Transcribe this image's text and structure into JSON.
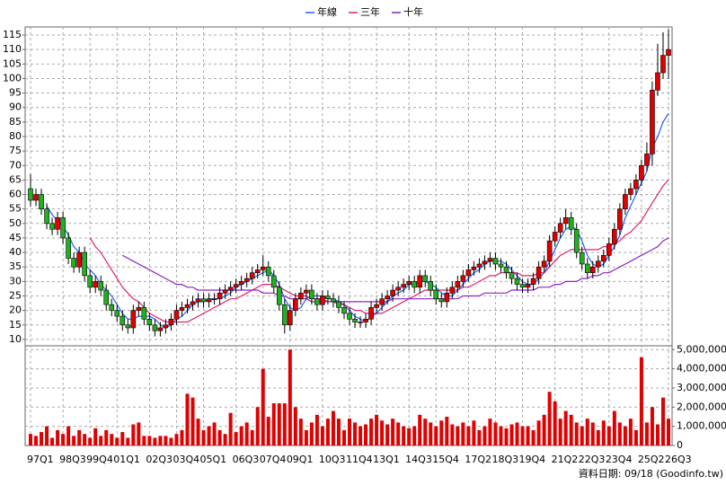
{
  "chart_data": {
    "type": "candlestick",
    "legend": "top",
    "grid": true,
    "up_color": "#e00000",
    "down_color": "#20b020",
    "categories": [
      "97Q1",
      null,
      null,
      null,
      null,
      null,
      "98Q3",
      null,
      null,
      null,
      null,
      "99Q4",
      null,
      null,
      null,
      null,
      "01Q1",
      null,
      null,
      null,
      null,
      null,
      "02Q3",
      null,
      null,
      null,
      null,
      "03Q4",
      null,
      null,
      null,
      null,
      "05Q1",
      null,
      null,
      null,
      null,
      null,
      "06Q3",
      null,
      null,
      null,
      null,
      "07Q4",
      null,
      null,
      null,
      null,
      "09Q1",
      null,
      null,
      null,
      null,
      null,
      "10Q3",
      null,
      null,
      null,
      null,
      "11Q4",
      null,
      null,
      null,
      null,
      "13Q1",
      null,
      null,
      null,
      null,
      null,
      "14Q3",
      null,
      null,
      null,
      null,
      "15Q4",
      null,
      null,
      null,
      null,
      null,
      "17Q2",
      null,
      null,
      null,
      null,
      "18Q3",
      null,
      null,
      null,
      null,
      "19Q4",
      null,
      null,
      null,
      null,
      null,
      "21Q2",
      null,
      null,
      null,
      null,
      "22Q3",
      null,
      null,
      null,
      null,
      "23Q4",
      null,
      null,
      null,
      null,
      null,
      "25Q2",
      null,
      null,
      null,
      null,
      "26Q3"
    ],
    "ohlc": [
      [
        62,
        67,
        56,
        58
      ],
      [
        58,
        62,
        56,
        60
      ],
      [
        60,
        62,
        53,
        55
      ],
      [
        55,
        57,
        48,
        50
      ],
      [
        50,
        52,
        46,
        48
      ],
      [
        48,
        54,
        46,
        52
      ],
      [
        52,
        54,
        43,
        45
      ],
      [
        45,
        47,
        36,
        38
      ],
      [
        38,
        40,
        33,
        35
      ],
      [
        35,
        42,
        33,
        40
      ],
      [
        40,
        42,
        30,
        32
      ],
      [
        32,
        34,
        26,
        28
      ],
      [
        28,
        32,
        26,
        30
      ],
      [
        30,
        32,
        25,
        27
      ],
      [
        27,
        29,
        20,
        22
      ],
      [
        22,
        24,
        18,
        20
      ],
      [
        20,
        22,
        16,
        18
      ],
      [
        18,
        20,
        13,
        15
      ],
      [
        15,
        17,
        12,
        14
      ],
      [
        14,
        22,
        12,
        20
      ],
      [
        20,
        23,
        18,
        21
      ],
      [
        21,
        23,
        15,
        17
      ],
      [
        17,
        19,
        13,
        15
      ],
      [
        15,
        17,
        11,
        13
      ],
      [
        13,
        16,
        11,
        14
      ],
      [
        14,
        17,
        12,
        15
      ],
      [
        15,
        19,
        13,
        17
      ],
      [
        17,
        22,
        15,
        20
      ],
      [
        20,
        23,
        18,
        21
      ],
      [
        21,
        24,
        19,
        22
      ],
      [
        22,
        25,
        20,
        23
      ],
      [
        23,
        26,
        21,
        24
      ],
      [
        24,
        26,
        21,
        23
      ],
      [
        23,
        26,
        21,
        24
      ],
      [
        24,
        26,
        22,
        24
      ],
      [
        24,
        28,
        22,
        26
      ],
      [
        26,
        29,
        24,
        27
      ],
      [
        27,
        30,
        25,
        28
      ],
      [
        28,
        31,
        26,
        29
      ],
      [
        29,
        32,
        27,
        30
      ],
      [
        30,
        33,
        28,
        31
      ],
      [
        31,
        35,
        29,
        33
      ],
      [
        33,
        36,
        31,
        34
      ],
      [
        34,
        39,
        32,
        35
      ],
      [
        35,
        37,
        30,
        32
      ],
      [
        32,
        34,
        26,
        28
      ],
      [
        28,
        30,
        20,
        22
      ],
      [
        22,
        24,
        12,
        15
      ],
      [
        15,
        22,
        13,
        20
      ],
      [
        20,
        26,
        18,
        24
      ],
      [
        24,
        28,
        22,
        26
      ],
      [
        26,
        29,
        24,
        27
      ],
      [
        27,
        29,
        22,
        24
      ],
      [
        24,
        26,
        20,
        22
      ],
      [
        22,
        27,
        20,
        25
      ],
      [
        25,
        27,
        22,
        24
      ],
      [
        24,
        26,
        21,
        23
      ],
      [
        23,
        25,
        19,
        21
      ],
      [
        21,
        23,
        17,
        19
      ],
      [
        19,
        21,
        15,
        17
      ],
      [
        17,
        19,
        14,
        16
      ],
      [
        16,
        18,
        14,
        16
      ],
      [
        16,
        19,
        14,
        17
      ],
      [
        17,
        23,
        15,
        21
      ],
      [
        21,
        24,
        19,
        22
      ],
      [
        22,
        26,
        20,
        24
      ],
      [
        24,
        27,
        22,
        25
      ],
      [
        25,
        29,
        23,
        27
      ],
      [
        27,
        30,
        25,
        28
      ],
      [
        28,
        31,
        26,
        29
      ],
      [
        29,
        32,
        27,
        30
      ],
      [
        30,
        32,
        26,
        28
      ],
      [
        28,
        34,
        26,
        32
      ],
      [
        32,
        34,
        28,
        30
      ],
      [
        30,
        32,
        25,
        27
      ],
      [
        27,
        29,
        22,
        24
      ],
      [
        24,
        26,
        21,
        23
      ],
      [
        23,
        28,
        21,
        26
      ],
      [
        26,
        30,
        24,
        28
      ],
      [
        28,
        32,
        26,
        30
      ],
      [
        30,
        34,
        28,
        32
      ],
      [
        32,
        36,
        30,
        34
      ],
      [
        34,
        37,
        32,
        35
      ],
      [
        35,
        38,
        33,
        36
      ],
      [
        36,
        39,
        34,
        37
      ],
      [
        37,
        40,
        35,
        38
      ],
      [
        38,
        40,
        34,
        36
      ],
      [
        36,
        38,
        33,
        35
      ],
      [
        35,
        37,
        31,
        33
      ],
      [
        33,
        35,
        29,
        31
      ],
      [
        31,
        33,
        27,
        29
      ],
      [
        29,
        31,
        26,
        28
      ],
      [
        28,
        31,
        26,
        29
      ],
      [
        29,
        33,
        27,
        31
      ],
      [
        31,
        37,
        29,
        35
      ],
      [
        35,
        39,
        33,
        37
      ],
      [
        37,
        46,
        35,
        44
      ],
      [
        44,
        49,
        42,
        47
      ],
      [
        47,
        52,
        45,
        50
      ],
      [
        50,
        55,
        48,
        52
      ],
      [
        52,
        54,
        46,
        48
      ],
      [
        48,
        50,
        38,
        40
      ],
      [
        40,
        42,
        34,
        36
      ],
      [
        36,
        38,
        31,
        33
      ],
      [
        33,
        37,
        31,
        35
      ],
      [
        35,
        39,
        33,
        37
      ],
      [
        37,
        41,
        35,
        39
      ],
      [
        39,
        45,
        37,
        43
      ],
      [
        43,
        50,
        41,
        48
      ],
      [
        48,
        57,
        46,
        55
      ],
      [
        55,
        62,
        53,
        60
      ],
      [
        60,
        64,
        58,
        62
      ],
      [
        62,
        67,
        60,
        65
      ],
      [
        65,
        72,
        63,
        70
      ],
      [
        70,
        78,
        68,
        74
      ],
      [
        74,
        99,
        70,
        96
      ],
      [
        96,
        112,
        94,
        102
      ],
      [
        102,
        116,
        100,
        108
      ],
      [
        108,
        117,
        100,
        110
      ]
    ],
    "series": [
      {
        "name": "年線",
        "color": "#2060ff",
        "values": [
          null,
          null,
          null,
          56,
          53,
          51,
          49,
          46,
          42,
          40,
          36,
          34,
          32,
          29,
          27,
          25,
          22,
          19,
          17,
          17,
          18,
          18,
          18,
          17,
          15,
          14,
          15,
          17,
          18,
          20,
          22,
          23,
          23,
          24,
          24,
          24,
          25,
          26,
          28,
          29,
          30,
          31,
          32,
          33,
          34,
          32,
          29,
          24,
          21,
          20,
          21,
          24,
          25,
          25,
          25,
          24,
          24,
          23,
          22,
          20,
          18,
          17,
          16,
          18,
          19,
          21,
          23,
          25,
          26,
          27,
          29,
          29,
          30,
          30,
          29,
          28,
          26,
          25,
          25,
          27,
          29,
          31,
          33,
          34,
          36,
          37,
          37,
          37,
          36,
          34,
          32,
          30,
          29,
          29,
          31,
          33,
          37,
          41,
          45,
          48,
          49,
          48,
          44,
          39,
          36,
          35,
          36,
          39,
          42,
          46,
          52,
          56,
          60,
          64,
          68,
          76,
          80,
          85,
          88
        ]
      },
      {
        "name": "三年",
        "color": "#e0206a",
        "values": [
          null,
          null,
          null,
          null,
          null,
          null,
          null,
          null,
          null,
          null,
          null,
          45,
          42,
          40,
          37,
          34,
          31,
          28,
          26,
          24,
          23,
          21,
          19,
          18,
          17,
          16,
          16,
          16,
          16,
          16,
          17,
          18,
          19,
          20,
          21,
          22,
          23,
          24,
          24,
          25,
          26,
          27,
          28,
          29,
          29,
          29,
          28,
          27,
          26,
          25,
          25,
          25,
          24,
          24,
          24,
          23,
          23,
          22,
          22,
          21,
          20,
          20,
          19,
          19,
          19,
          19,
          20,
          21,
          22,
          23,
          24,
          25,
          26,
          27,
          27,
          27,
          27,
          27,
          27,
          27,
          28,
          28,
          29,
          30,
          31,
          32,
          32,
          33,
          33,
          33,
          33,
          32,
          32,
          32,
          33,
          33,
          35,
          37,
          39,
          40,
          41,
          41,
          41,
          41,
          41,
          41,
          42,
          42,
          43,
          44,
          46,
          47,
          49,
          51,
          54,
          57,
          60,
          63,
          65
        ]
      },
      {
        "name": "十年",
        "color": "#9020c0",
        "values": [
          null,
          null,
          null,
          null,
          null,
          null,
          null,
          null,
          null,
          null,
          null,
          null,
          null,
          null,
          null,
          null,
          null,
          39,
          38,
          37,
          36,
          35,
          34,
          33,
          32,
          31,
          30,
          29,
          29,
          28,
          28,
          27,
          27,
          27,
          27,
          27,
          27,
          27,
          27,
          27,
          27,
          27,
          27,
          26,
          26,
          26,
          25,
          25,
          24,
          24,
          24,
          24,
          23,
          23,
          23,
          23,
          23,
          23,
          23,
          23,
          23,
          23,
          23,
          23,
          23,
          23,
          23,
          24,
          24,
          24,
          24,
          24,
          24,
          24,
          24,
          24,
          24,
          24,
          24,
          24,
          25,
          25,
          25,
          25,
          26,
          26,
          26,
          26,
          26,
          27,
          27,
          27,
          27,
          27,
          28,
          28,
          28,
          29,
          29,
          30,
          30,
          30,
          31,
          31,
          32,
          32,
          33,
          33,
          34,
          35,
          36,
          37,
          38,
          39,
          40,
          41,
          42,
          44,
          45
        ]
      }
    ],
    "ylim": [
      7.8,
      117.8
    ],
    "yticks": [
      10,
      15,
      20,
      25,
      30,
      35,
      40,
      45,
      50,
      55,
      60,
      65,
      70,
      75,
      80,
      85,
      90,
      95,
      100,
      105,
      110,
      115
    ],
    "volume": {
      "color": "#e00000",
      "values": [
        600000,
        500000,
        700000,
        1000000,
        400000,
        800000,
        600000,
        1000000,
        500000,
        800000,
        600000,
        400000,
        900000,
        500000,
        800000,
        600000,
        400000,
        700000,
        400000,
        1100000,
        1200000,
        500000,
        500000,
        400000,
        500000,
        500000,
        400000,
        600000,
        800000,
        2700000,
        2500000,
        1400000,
        800000,
        1000000,
        1200000,
        800000,
        600000,
        1700000,
        700000,
        1000000,
        1200000,
        800000,
        2000000,
        4000000,
        1500000,
        2200000,
        2200000,
        2200000,
        5000000,
        2000000,
        1400000,
        800000,
        1200000,
        1600000,
        1000000,
        1400000,
        1800000,
        1400000,
        800000,
        1400000,
        1200000,
        1000000,
        1100000,
        1400000,
        1600000,
        1300000,
        1100000,
        1400000,
        1200000,
        1000000,
        900000,
        1000000,
        1600000,
        1400000,
        1200000,
        1000000,
        1300000,
        1500000,
        1100000,
        1000000,
        1200000,
        1000000,
        1300000,
        800000,
        1000000,
        1400000,
        1200000,
        1000000,
        900000,
        1100000,
        1200000,
        1000000,
        1000000,
        800000,
        1300000,
        1600000,
        2800000,
        2300000,
        1400000,
        1800000,
        1600000,
        1200000,
        1000000,
        1400000,
        1200000,
        800000,
        1300000,
        1000000,
        1800000,
        1200000,
        1000000,
        1400000,
        800000,
        4600000,
        1200000,
        2000000,
        1100000,
        2500000,
        1400000
      ],
      "ylim": [
        0,
        5200000
      ],
      "yticks": [
        0,
        {
          "value": 1000000,
          "label": "1,000,000"
        },
        {
          "value": 2000000,
          "label": "2,000,000"
        },
        {
          "value": 3000000,
          "label": "3,000,000"
        },
        {
          "value": 4000000,
          "label": "4,000,000"
        },
        {
          "value": 5000000,
          "label": "5,000,000"
        }
      ]
    },
    "source": "資料日期: 09/18 (Goodinfo.tw)"
  }
}
